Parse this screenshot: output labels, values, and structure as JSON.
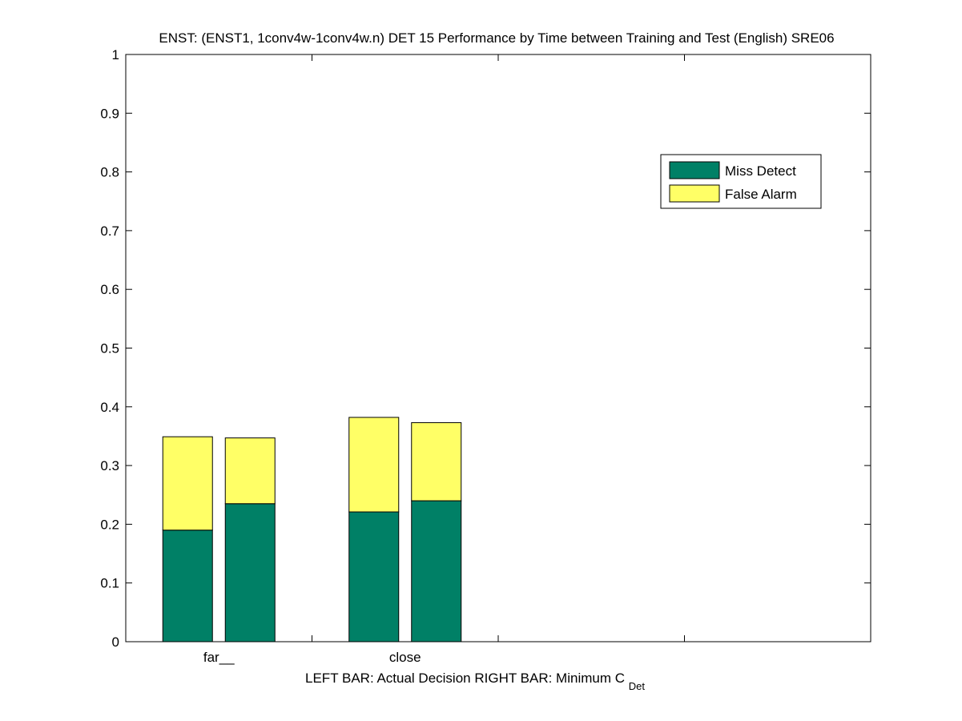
{
  "chart_data": {
    "type": "bar",
    "stacked": true,
    "title": "ENST: (ENST1, 1conv4w-1conv4w.n) DET 15 Performance by Time between Training and Test (English) SRE06",
    "xlabel_parts": {
      "left": "LEFT BAR: Actual Decision",
      "right_main": "RIGHT BAR: Minimum C",
      "right_sub": "Det"
    },
    "ylabel": "",
    "ylim": [
      0,
      1
    ],
    "yticks": [
      "0",
      "0.1",
      "0.2",
      "0.3",
      "0.4",
      "0.5",
      "0.6",
      "0.7",
      "0.8",
      "0.9",
      "1"
    ],
    "categories": [
      "far__",
      "close"
    ],
    "bars_per_category": [
      "Actual Decision",
      "Minimum C_Det"
    ],
    "series": [
      {
        "name": "Miss Detect",
        "color": "#008066",
        "values": [
          [
            0.19,
            0.235
          ],
          [
            0.221,
            0.24
          ]
        ]
      },
      {
        "name": "False Alarm",
        "color": "#ffff66",
        "values": [
          [
            0.159,
            0.112
          ],
          [
            0.161,
            0.133
          ]
        ]
      }
    ],
    "totals": [
      [
        0.349,
        0.347
      ],
      [
        0.382,
        0.373
      ]
    ],
    "legend_position": "top-right",
    "grid": false
  }
}
